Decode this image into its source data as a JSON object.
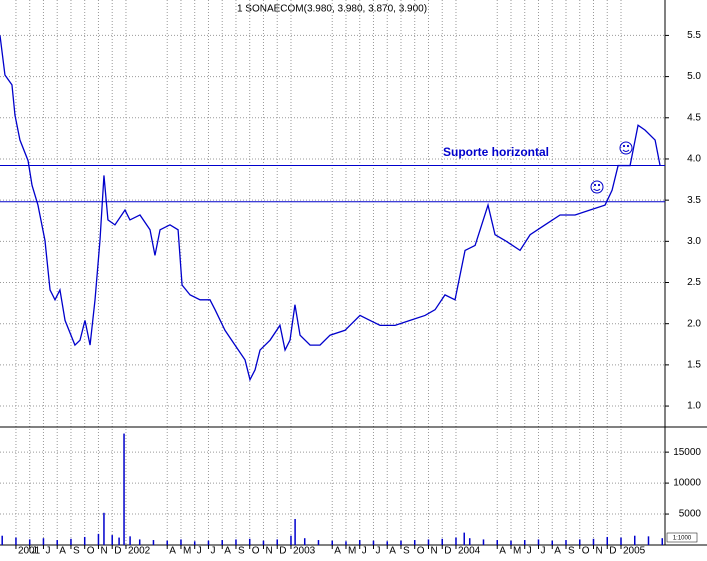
{
  "chart_data": [
    {
      "type": "line",
      "title": "1 SONAECOM(3.980, 3.980, 3.870, 3.900)",
      "color": "#0000cc",
      "x": [
        2.84,
        3.2,
        3.71,
        3.93,
        4.29,
        4.88,
        5.17,
        5.6,
        6.11,
        6.48,
        6.84,
        7.2,
        7.57,
        8.29,
        8.66,
        9.02,
        9.39,
        9.75,
        10.11,
        10.4,
        10.69,
        11.2,
        11.93,
        12.29,
        13.02,
        13.75,
        14.11,
        14.48,
        15.2,
        15.79,
        16.08,
        16.66,
        17.39,
        18.11,
        18.48,
        19.2,
        19.93,
        20.66,
        21.02,
        21.39,
        21.75,
        22.48,
        23.2,
        23.57,
        23.93,
        24.29,
        24.66,
        25.39,
        26.11,
        26.84,
        27.93,
        29.02,
        29.75,
        30.48,
        31.57,
        32.66,
        33.75,
        34.48,
        35.2,
        35.93,
        36.66,
        37.39,
        38.33,
        38.84,
        39.57,
        40.66,
        41.39,
        42.48,
        43.57,
        44.66,
        45.75,
        46.84,
        47.35,
        47.79,
        48.66,
        49.24,
        49.75,
        50.48,
        50.84
      ],
      "values": [
        5.5,
        5.02,
        4.9,
        4.53,
        4.23,
        3.98,
        3.68,
        3.44,
        3.01,
        2.41,
        2.29,
        2.41,
        2.04,
        1.74,
        1.8,
        2.04,
        1.74,
        2.29,
        3.01,
        3.8,
        3.26,
        3.2,
        3.38,
        3.26,
        3.32,
        3.14,
        2.83,
        3.14,
        3.2,
        3.14,
        2.47,
        2.35,
        2.29,
        2.29,
        2.17,
        1.92,
        1.74,
        1.56,
        1.32,
        1.44,
        1.68,
        1.8,
        1.98,
        1.68,
        1.8,
        2.23,
        1.86,
        1.74,
        1.74,
        1.86,
        1.92,
        2.1,
        2.04,
        1.98,
        1.98,
        2.04,
        2.1,
        2.17,
        2.35,
        2.29,
        2.89,
        2.95,
        3.44,
        3.08,
        3.01,
        2.89,
        3.08,
        3.2,
        3.32,
        3.32,
        3.38,
        3.44,
        3.62,
        3.92,
        3.92,
        4.41,
        4.35,
        4.23,
        3.92
      ],
      "xlim": [
        2.84,
        51.2
      ],
      "ylim": [
        0.77,
        5.93
      ],
      "yticks": [
        {
          "value": 1,
          "label": "1.0"
        },
        1.5,
        {
          "value": 2,
          "label": "2.0"
        },
        2.5,
        {
          "value": 3,
          "label": "3.0"
        },
        3.5,
        {
          "value": 4,
          "label": "4.0"
        },
        4.5,
        {
          "value": 5,
          "label": "5.0"
        },
        5.5
      ],
      "xticks": [
        {
          "value": 4,
          "label": "2001"
        },
        {
          "value": 5,
          "label": "J"
        },
        {
          "value": 6,
          "label": "J"
        },
        {
          "value": 7,
          "label": "A"
        },
        {
          "value": 8,
          "label": "S"
        },
        {
          "value": 9,
          "label": "O"
        },
        {
          "value": 10,
          "label": "N"
        },
        {
          "value": 11,
          "label": "D"
        },
        {
          "value": 12,
          "label": "2002"
        },
        {
          "value": 15,
          "label": "A"
        },
        {
          "value": 16,
          "label": "M"
        },
        {
          "value": 17,
          "label": "J"
        },
        {
          "value": 18,
          "label": "J"
        },
        {
          "value": 19,
          "label": "A"
        },
        {
          "value": 20,
          "label": "S"
        },
        {
          "value": 21,
          "label": "O"
        },
        {
          "value": 22,
          "label": "N"
        },
        {
          "value": 23,
          "label": "D"
        },
        {
          "value": 24,
          "label": "2003"
        },
        {
          "value": 27,
          "label": "A"
        },
        {
          "value": 28,
          "label": "M"
        },
        {
          "value": 29,
          "label": "J"
        },
        {
          "value": 30,
          "label": "J"
        },
        {
          "value": 31,
          "label": "A"
        },
        {
          "value": 32,
          "label": "S"
        },
        {
          "value": 33,
          "label": "O"
        },
        {
          "value": 34,
          "label": "N"
        },
        {
          "value": 35,
          "label": "D"
        },
        {
          "value": 36,
          "label": "2004"
        },
        {
          "value": 39,
          "label": "A"
        },
        {
          "value": 40,
          "label": "M"
        },
        {
          "value": 41,
          "label": "J"
        },
        {
          "value": 42,
          "label": "J"
        },
        {
          "value": 43,
          "label": "A"
        },
        {
          "value": 44,
          "label": "S"
        },
        {
          "value": 45,
          "label": "O"
        },
        {
          "value": 46,
          "label": "N"
        },
        {
          "value": 47,
          "label": "D"
        },
        {
          "value": 48,
          "label": "2005"
        }
      ],
      "hlines": [
        3.92,
        3.48
      ],
      "hline_color": "#0000cc",
      "annotation": "Suporte horizontal",
      "grid": true
    },
    {
      "type": "bar",
      "color": "#0000cc",
      "unit_label": "1:1000",
      "x": [
        3,
        4,
        5,
        6,
        7,
        8,
        9,
        10,
        10.4,
        11,
        11.5,
        11.86,
        12.3,
        13,
        14,
        15,
        16,
        17,
        18,
        19,
        20,
        21,
        22,
        23,
        24,
        24.3,
        25,
        26,
        27,
        28,
        29,
        30,
        31,
        32,
        33,
        34,
        35,
        36,
        36.6,
        37,
        38,
        39,
        40,
        41,
        42,
        43,
        44,
        45,
        46,
        47,
        48,
        49,
        50,
        51
      ],
      "values": [
        1500,
        1200,
        900,
        1100,
        800,
        1000,
        1300,
        1800,
        5200,
        1600,
        1200,
        18000,
        1400,
        900,
        800,
        700,
        900,
        600,
        700,
        800,
        900,
        1000,
        700,
        900,
        1500,
        4200,
        1100,
        800,
        700,
        600,
        800,
        700,
        600,
        700,
        800,
        900,
        1000,
        1200,
        2000,
        1100,
        900,
        800,
        700,
        800,
        900,
        700,
        800,
        900,
        1000,
        1300,
        1200,
        1500,
        1400,
        1100
      ],
      "xlim": [
        2.84,
        51.2
      ],
      "ylim": [
        0,
        18900
      ],
      "yticks": [
        5000,
        10000,
        15000
      ]
    }
  ]
}
